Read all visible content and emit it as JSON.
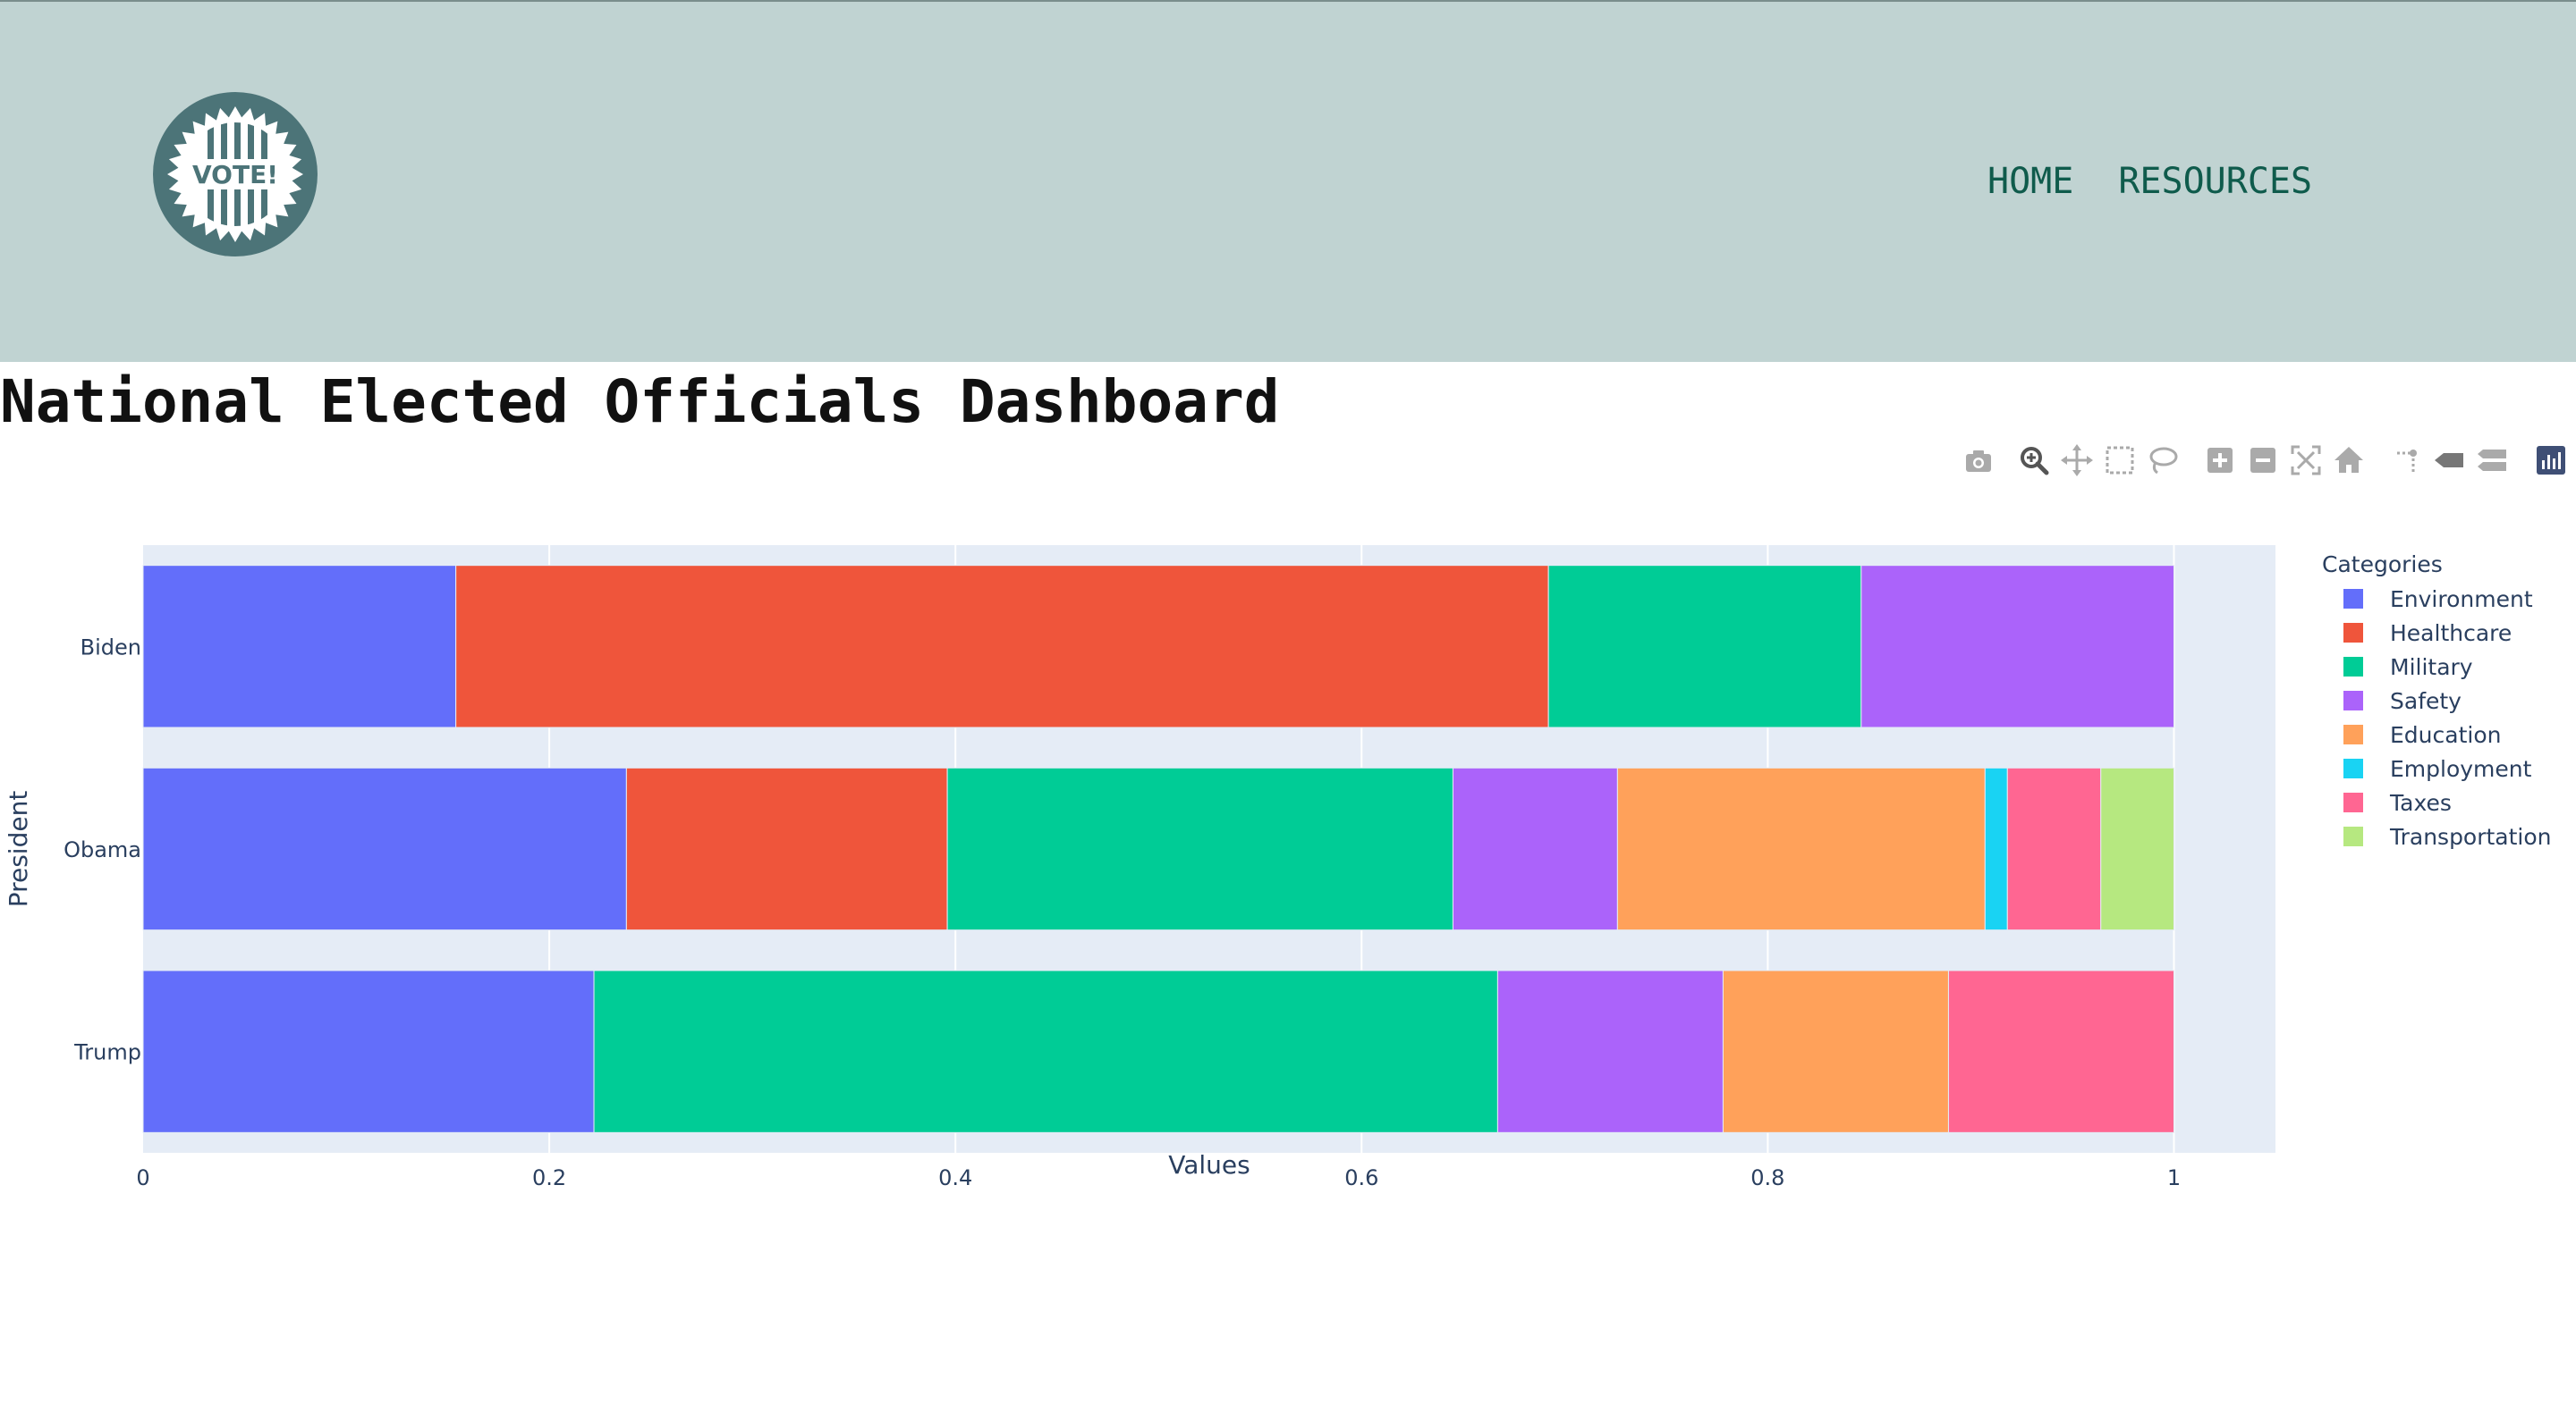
{
  "header": {
    "logo_text": "VOTE!",
    "nav": [
      {
        "label": "HOME"
      },
      {
        "label": "RESOURCES"
      }
    ]
  },
  "page": {
    "title": "National Elected Officials Dashboard"
  },
  "modebar": {
    "icons": [
      "camera-icon",
      "zoom-icon",
      "pan-icon",
      "box-select-icon",
      "lasso-select-icon",
      "zoom-in-icon",
      "zoom-out-icon",
      "autoscale-icon",
      "reset-axes-icon",
      "spike-lines-icon",
      "hover-closest-icon",
      "hover-compare-icon",
      "plotly-logo-icon"
    ]
  },
  "chart_data": {
    "type": "bar",
    "orientation": "horizontal",
    "barmode": "stack",
    "categories": [
      "Trump",
      "Obama",
      "Biden"
    ],
    "xlabel": "Values",
    "ylabel": "President",
    "xlim": [
      0,
      1.05
    ],
    "xticks": [
      "0",
      "0.2",
      "0.4",
      "0.6",
      "0.8",
      "1"
    ],
    "grid": true,
    "legend": {
      "title": "Categories",
      "placement": "right"
    },
    "series": [
      {
        "name": "Environment",
        "color": "#636efa",
        "values": [
          0.222,
          0.238,
          0.154
        ]
      },
      {
        "name": "Healthcare",
        "color": "#ef553b",
        "values": [
          0,
          0.158,
          0.538
        ]
      },
      {
        "name": "Military",
        "color": "#00cc96",
        "values": [
          0.445,
          0.249,
          0.154
        ]
      },
      {
        "name": "Safety",
        "color": "#ab63fa",
        "values": [
          0.111,
          0.081,
          0.154
        ]
      },
      {
        "name": "Education",
        "color": "#ffa15a",
        "values": [
          0.111,
          0.181,
          0
        ]
      },
      {
        "name": "Employment",
        "color": "#19d3f3",
        "values": [
          0,
          0.011,
          0
        ]
      },
      {
        "name": "Taxes",
        "color": "#ff6692",
        "values": [
          0.111,
          0.046,
          0
        ]
      },
      {
        "name": "Transportation",
        "color": "#b6e880",
        "values": [
          0,
          0.036,
          0
        ]
      }
    ]
  }
}
